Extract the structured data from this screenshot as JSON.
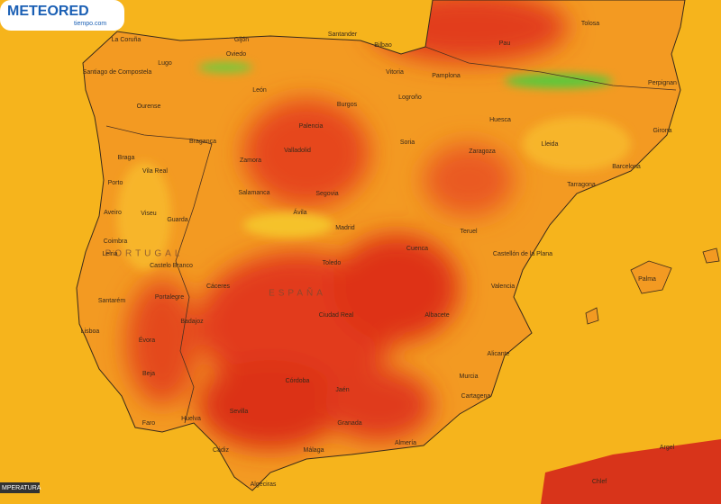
{
  "logo": {
    "brand": "METEORED",
    "site": "tiempo.com"
  },
  "countries": [
    "PORTUGAL",
    "ESPAÑA"
  ],
  "cities": [
    "La Coruña",
    "Gijón",
    "Santander",
    "Bilbao",
    "Pau",
    "Tolosa",
    "Santiago de Compostela",
    "Lugo",
    "Oviedo",
    "Ourense",
    "León",
    "Vitoria",
    "Pamplona",
    "Perpignan",
    "Burgos",
    "Logroño",
    "Huesca",
    "Lleida",
    "Girona",
    "Barcelona",
    "Tarragona",
    "Zaragoza",
    "Soria",
    "Palencia",
    "Valladolid",
    "Braga",
    "Bragança",
    "Zamora",
    "Vila Real",
    "Porto",
    "Salamanca",
    "Segovia",
    "Ávila",
    "Aveiro",
    "Viseu",
    "Guarda",
    "Madrid",
    "Teruel",
    "Coimbra",
    "Leiria",
    "Cuenca",
    "Castellón de la Plana",
    "Castelo Branco",
    "Toledo",
    "Cáceres",
    "Portalegre",
    "Valencia",
    "Palma",
    "Santarém",
    "Badajoz",
    "Ciudad Real",
    "Albacete",
    "Lisboa",
    "Évora",
    "Alicante",
    "Beja",
    "Murcia",
    "Córdoba",
    "Jaén",
    "Cartagena",
    "Sevilla",
    "Huelva",
    "Granada",
    "Faro",
    "Almería",
    "Málaga",
    "Cádiz",
    "Algeciras",
    "Argel",
    "Chlef"
  ],
  "legend": "MPERATURA"
}
